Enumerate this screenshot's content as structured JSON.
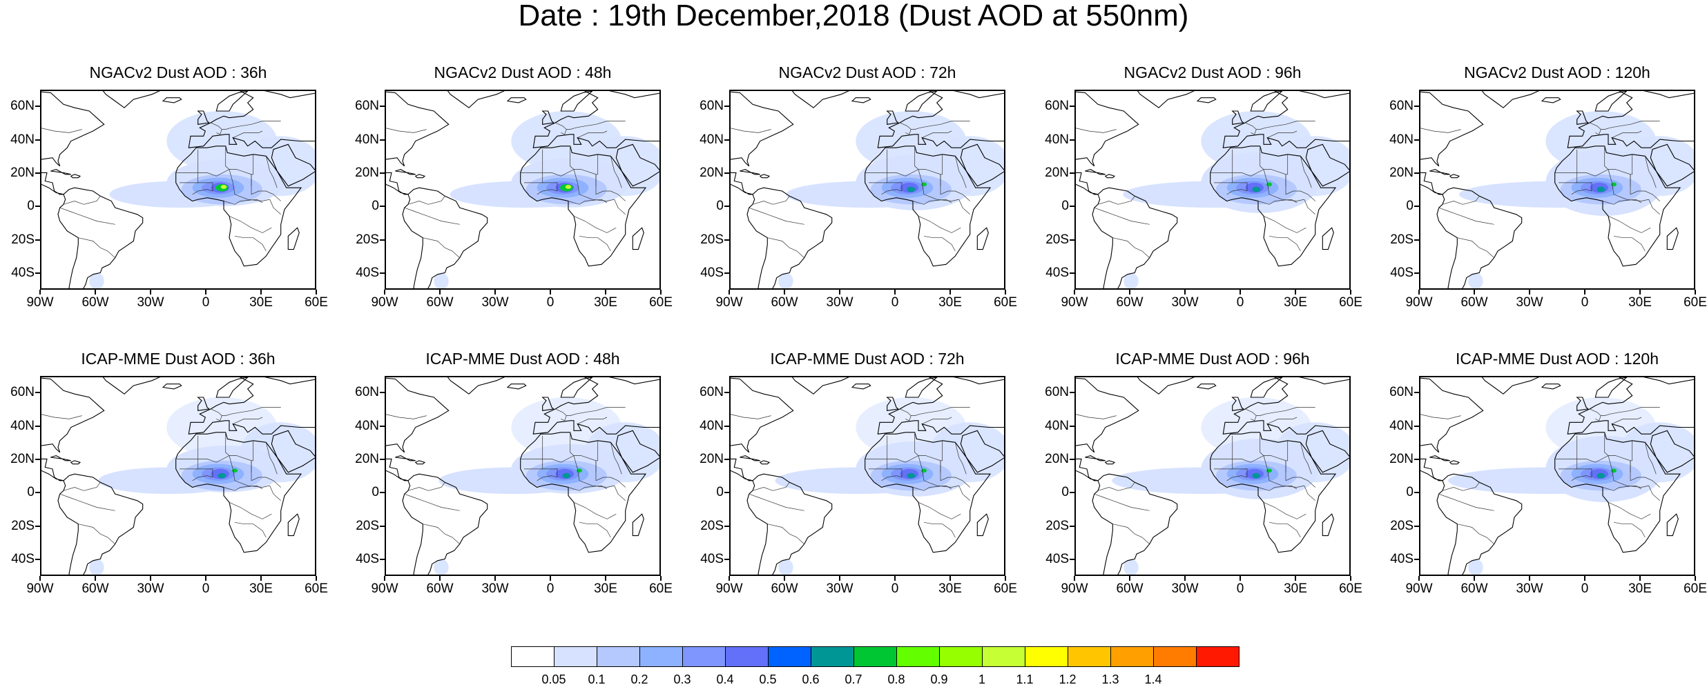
{
  "title": "Date : 19th December,2018 (Dust AOD at 550nm)",
  "lat_ticks": [
    "60N",
    "40N",
    "20N",
    "0",
    "20S",
    "40S"
  ],
  "lat_values": [
    60,
    40,
    20,
    0,
    -20,
    -40
  ],
  "lon_ticks": [
    "90W",
    "60W",
    "30W",
    "0",
    "30E",
    "60E"
  ],
  "lon_values": [
    -90,
    -60,
    -30,
    0,
    30,
    60
  ],
  "map_extent": {
    "lon": [
      -90,
      60
    ],
    "lat": [
      -50,
      70
    ]
  },
  "panels": [
    {
      "title": "NGACv2 Dust AOD : 36h",
      "model": "NGACv2",
      "lead_hours": 36
    },
    {
      "title": "NGACv2 Dust AOD : 48h",
      "model": "NGACv2",
      "lead_hours": 48
    },
    {
      "title": "NGACv2 Dust AOD : 72h",
      "model": "NGACv2",
      "lead_hours": 72
    },
    {
      "title": "NGACv2 Dust AOD : 96h",
      "model": "NGACv2",
      "lead_hours": 96
    },
    {
      "title": "NGACv2 Dust AOD : 120h",
      "model": "NGACv2",
      "lead_hours": 120
    },
    {
      "title": "ICAP-MME Dust AOD : 36h",
      "model": "ICAP-MME",
      "lead_hours": 36
    },
    {
      "title": "ICAP-MME Dust AOD : 48h",
      "model": "ICAP-MME",
      "lead_hours": 48
    },
    {
      "title": "ICAP-MME Dust AOD : 72h",
      "model": "ICAP-MME",
      "lead_hours": 72
    },
    {
      "title": "ICAP-MME Dust AOD : 96h",
      "model": "ICAP-MME",
      "lead_hours": 96
    },
    {
      "title": "ICAP-MME Dust AOD : 120h",
      "model": "ICAP-MME",
      "lead_hours": 120
    }
  ],
  "colorbar": {
    "labels": [
      "0.05",
      "0.1",
      "0.2",
      "0.3",
      "0.4",
      "0.5",
      "0.6",
      "0.7",
      "0.8",
      "0.9",
      "1",
      "1.1",
      "1.2",
      "1.3",
      "1.4"
    ],
    "colors": [
      "#ffffff",
      "#d6e2ff",
      "#b5c9ff",
      "#8eb2ff",
      "#7f96ff",
      "#6370f8",
      "#0063ff",
      "#009696",
      "#00c633",
      "#63ff00",
      "#96ff00",
      "#c6ff33",
      "#ffff00",
      "#ffc600",
      "#ffa000",
      "#ff7c00",
      "#ff1900"
    ]
  }
}
